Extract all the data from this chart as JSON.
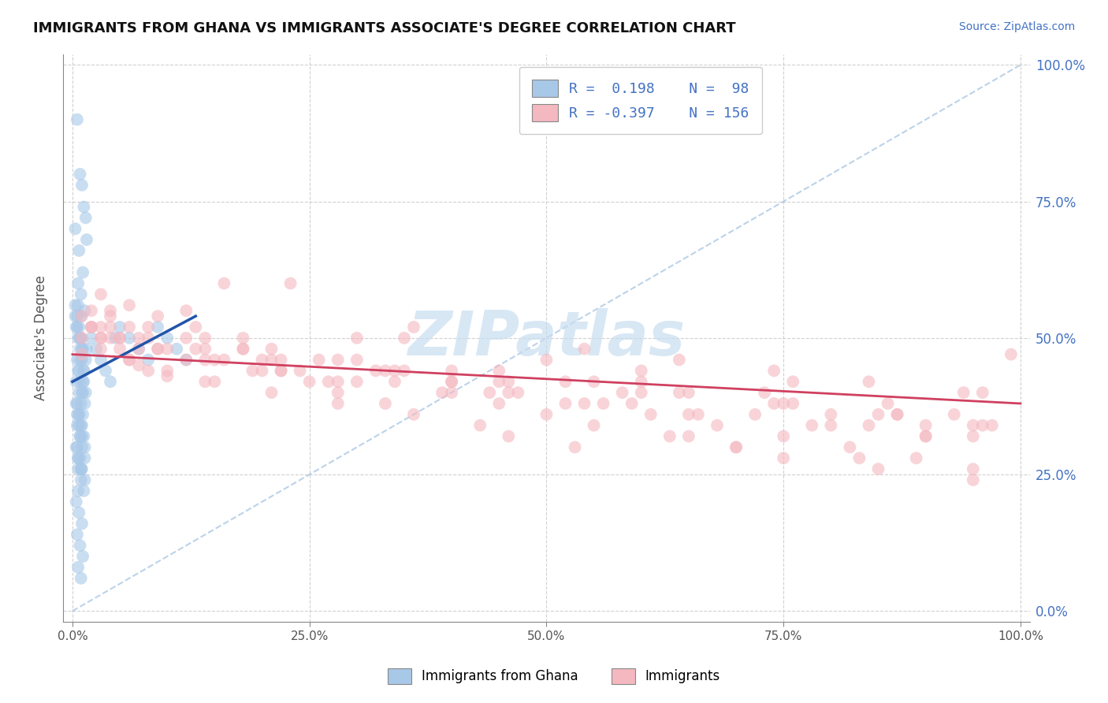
{
  "title": "IMMIGRANTS FROM GHANA VS IMMIGRANTS ASSOCIATE'S DEGREE CORRELATION CHART",
  "source_text": "Source: ZipAtlas.com",
  "ylabel": "Associate's Degree",
  "x_tick_labels": [
    "0.0%",
    "25.0%",
    "50.0%",
    "75.0%",
    "100.0%"
  ],
  "x_tick_positions": [
    0,
    25,
    50,
    75,
    100
  ],
  "y_tick_labels": [
    "0.0%",
    "25.0%",
    "50.0%",
    "75.0%",
    "100.0%"
  ],
  "y_tick_positions": [
    0,
    25,
    50,
    75,
    100
  ],
  "xlim": [
    -1,
    101
  ],
  "ylim": [
    -2,
    102
  ],
  "legend_labels": [
    "Immigrants from Ghana",
    "Immigrants"
  ],
  "legend_R": [
    0.198,
    -0.397
  ],
  "legend_N": [
    98,
    156
  ],
  "blue_color": "#a8c8e8",
  "pink_color": "#f4b8c0",
  "blue_line_color": "#2255aa",
  "pink_line_color": "#d04060",
  "watermark": "ZIPatlas",
  "watermark_color": "#c8ddf0",
  "background_color": "#ffffff",
  "grid_color": "#cccccc",
  "blue_scatter_x": [
    0.5,
    0.8,
    1.0,
    1.2,
    1.5,
    0.3,
    0.7,
    1.1,
    0.6,
    0.9,
    1.3,
    0.4,
    0.8,
    1.0,
    1.4,
    0.5,
    0.7,
    1.2,
    0.6,
    0.9,
    1.1,
    0.8,
    1.3,
    0.5,
    0.7,
    1.0,
    1.5,
    0.4,
    0.8,
    1.2,
    0.6,
    0.9,
    1.1,
    1.4,
    0.5,
    0.7,
    1.0,
    0.8,
    1.3,
    0.6,
    0.9,
    2.0,
    2.5,
    3.0,
    3.5,
    4.0,
    4.5,
    5.0,
    6.0,
    7.0,
    8.0,
    9.0,
    10.0,
    11.0,
    12.0,
    0.3,
    0.5,
    0.6,
    0.8,
    1.0,
    1.2,
    0.4,
    0.7,
    0.9,
    1.1,
    0.5,
    0.8,
    1.0,
    1.3,
    0.6,
    0.9,
    1.2,
    0.4,
    0.7,
    1.0,
    0.5,
    0.8,
    1.1,
    0.6,
    0.9,
    0.3,
    0.5,
    0.7,
    0.9,
    1.1,
    1.4,
    0.6,
    0.8,
    1.0,
    0.4,
    0.7,
    0.9,
    1.2,
    0.5,
    0.8,
    1.0,
    1.3,
    0.6
  ],
  "blue_scatter_y": [
    90,
    80,
    78,
    74,
    68,
    70,
    66,
    62,
    60,
    58,
    55,
    52,
    50,
    48,
    72,
    46,
    44,
    42,
    56,
    54,
    40,
    50,
    38,
    36,
    34,
    32,
    48,
    30,
    46,
    44,
    28,
    26,
    42,
    40,
    38,
    36,
    34,
    32,
    30,
    28,
    26,
    50,
    48,
    46,
    44,
    42,
    50,
    52,
    50,
    48,
    46,
    52,
    50,
    48,
    46,
    54,
    52,
    50,
    48,
    46,
    44,
    42,
    40,
    38,
    36,
    34,
    32,
    30,
    28,
    26,
    24,
    22,
    20,
    18,
    16,
    14,
    12,
    10,
    8,
    6,
    56,
    54,
    52,
    50,
    48,
    46,
    44,
    42,
    40,
    38,
    36,
    34,
    32,
    30,
    28,
    26,
    24,
    22
  ],
  "pink_scatter_x": [
    1,
    2,
    3,
    4,
    5,
    6,
    7,
    8,
    10,
    12,
    14,
    16,
    18,
    20,
    22,
    25,
    28,
    30,
    33,
    36,
    40,
    43,
    46,
    50,
    53,
    56,
    60,
    63,
    66,
    70,
    73,
    76,
    80,
    83,
    86,
    90,
    93,
    96,
    99,
    2,
    4,
    6,
    9,
    12,
    15,
    18,
    22,
    26,
    30,
    35,
    40,
    45,
    50,
    55,
    60,
    65,
    70,
    75,
    80,
    85,
    90,
    95,
    3,
    6,
    9,
    13,
    18,
    23,
    28,
    34,
    40,
    47,
    54,
    61,
    68,
    75,
    82,
    89,
    95,
    1,
    3,
    6,
    10,
    15,
    21,
    28,
    36,
    45,
    55,
    65,
    75,
    85,
    95,
    2,
    5,
    9,
    14,
    20,
    27,
    35,
    44,
    54,
    64,
    74,
    84,
    94,
    4,
    8,
    14,
    21,
    30,
    40,
    52,
    64,
    76,
    87,
    96,
    3,
    7,
    12,
    19,
    28,
    39,
    52,
    65,
    78,
    90,
    2,
    5,
    10,
    16,
    24,
    34,
    46,
    59,
    72,
    84,
    95,
    1,
    4,
    8,
    14,
    22,
    33,
    46,
    60,
    74,
    87,
    97,
    3,
    7,
    13,
    21,
    32,
    45,
    58
  ],
  "pink_scatter_y": [
    47,
    52,
    50,
    55,
    48,
    46,
    45,
    44,
    43,
    55,
    42,
    60,
    48,
    46,
    44,
    42,
    40,
    50,
    38,
    36,
    42,
    34,
    32,
    46,
    30,
    38,
    44,
    32,
    36,
    30,
    40,
    42,
    34,
    28,
    38,
    32,
    36,
    40,
    47,
    55,
    50,
    52,
    48,
    50,
    46,
    48,
    44,
    46,
    42,
    44,
    40,
    38,
    36,
    34,
    42,
    32,
    30,
    28,
    36,
    26,
    34,
    24,
    58,
    56,
    54,
    52,
    50,
    60,
    46,
    44,
    42,
    40,
    38,
    36,
    34,
    32,
    30,
    28,
    26,
    50,
    48,
    46,
    44,
    42,
    40,
    38,
    52,
    44,
    42,
    40,
    38,
    36,
    34,
    52,
    50,
    48,
    46,
    44,
    42,
    50,
    40,
    48,
    46,
    44,
    42,
    40,
    54,
    52,
    50,
    48,
    46,
    44,
    42,
    40,
    38,
    36,
    34,
    50,
    48,
    46,
    44,
    42,
    40,
    38,
    36,
    34,
    32,
    52,
    50,
    48,
    46,
    44,
    42,
    40,
    38,
    36,
    34,
    32,
    54,
    52,
    50,
    48,
    46,
    44,
    42,
    40,
    38,
    36,
    34,
    52,
    50,
    48,
    46,
    44,
    42,
    40
  ],
  "blue_trend_x": [
    0,
    13
  ],
  "blue_trend_y": [
    42,
    54
  ],
  "pink_trend_x": [
    0,
    100
  ],
  "pink_trend_y": [
    47,
    38
  ],
  "diag_line_x": [
    0,
    100
  ],
  "diag_line_y": [
    0,
    100
  ]
}
